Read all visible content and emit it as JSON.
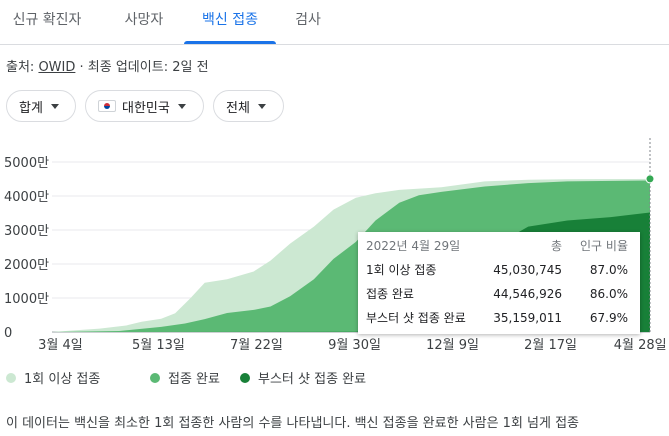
{
  "tabs": [
    {
      "label": "신규 확진자"
    },
    {
      "label": "사망자"
    },
    {
      "label": "백신 접종",
      "active": true
    },
    {
      "label": "검사"
    }
  ],
  "source": {
    "prefix": "출처:",
    "link": "OWID",
    "suffix": "· 최종 업데이트: 2일 전"
  },
  "filters": {
    "aggregate": "합계",
    "country": "대한민국",
    "scope": "전체"
  },
  "chart_data": {
    "type": "area",
    "y_ticks": [
      "0",
      "1000만",
      "2000만",
      "3000만",
      "4000만",
      "5000만"
    ],
    "y_tick_values": [
      0,
      10000000,
      20000000,
      30000000,
      40000000,
      50000000
    ],
    "x_ticks": [
      "3월 4일",
      "5월 13일",
      "7월 22일",
      "9월 30일",
      "12월 9일",
      "2월 17일",
      "4월 28일"
    ],
    "x_tick_dates": [
      "2021-03-04",
      "2021-05-13",
      "2021-07-22",
      "2021-09-30",
      "2021-12-09",
      "2022-02-17",
      "2022-04-28"
    ],
    "ylim": [
      0,
      50000000
    ],
    "xlim": [
      "2021-02-26",
      "2022-04-29"
    ],
    "series": [
      {
        "name": "1회 이상 접종",
        "color": "#cce8d2",
        "x": [
          "2021-02-26",
          "2021-03-15",
          "2021-04-01",
          "2021-04-20",
          "2021-05-01",
          "2021-05-15",
          "2021-05-25",
          "2021-06-05",
          "2021-06-15",
          "2021-07-01",
          "2021-07-20",
          "2021-08-01",
          "2021-08-15",
          "2021-09-01",
          "2021-09-15",
          "2021-10-01",
          "2021-10-15",
          "2021-11-01",
          "2021-12-01",
          "2022-01-01",
          "2022-02-01",
          "2022-03-01",
          "2022-04-29"
        ],
        "values": [
          0,
          500000,
          1000000,
          1900000,
          3000000,
          3900000,
          5500000,
          10000000,
          14500000,
          15500000,
          17800000,
          21000000,
          26000000,
          31000000,
          36000000,
          39500000,
          40800000,
          41800000,
          42600000,
          44300000,
          44800000,
          44900000,
          45030745
        ]
      },
      {
        "name": "접종 완료",
        "color": "#5bb974",
        "x": [
          "2021-02-26",
          "2021-04-15",
          "2021-05-15",
          "2021-06-01",
          "2021-06-15",
          "2021-07-01",
          "2021-07-20",
          "2021-08-01",
          "2021-08-15",
          "2021-09-01",
          "2021-09-15",
          "2021-10-01",
          "2021-10-15",
          "2021-11-01",
          "2021-11-15",
          "2021-12-01",
          "2022-01-01",
          "2022-02-01",
          "2022-03-01",
          "2022-04-29"
        ],
        "values": [
          0,
          300000,
          1500000,
          2500000,
          3800000,
          5600000,
          6500000,
          7500000,
          10500000,
          15500000,
          21500000,
          26500000,
          32800000,
          38000000,
          40200000,
          41200000,
          42800000,
          43800000,
          44300000,
          44546926
        ]
      },
      {
        "name": "부스터 샷 접종 완료",
        "color": "#188038",
        "x": [
          "2021-02-26",
          "2021-10-01",
          "2021-11-01",
          "2021-12-01",
          "2022-01-01",
          "2022-01-15",
          "2022-02-01",
          "2022-03-01",
          "2022-04-01",
          "2022-04-29"
        ],
        "values": [
          0,
          50000,
          1000000,
          7000000,
          22000000,
          27000000,
          31000000,
          32800000,
          33800000,
          35159011
        ]
      }
    ],
    "hover_point": {
      "date": "2022-04-29",
      "value": 45030745
    }
  },
  "tooltip": {
    "date": "2022년 4월 29일",
    "col_total": "총",
    "col_pct": "인구 비율",
    "rows": [
      {
        "name": "1회 이상 접종",
        "total": "45,030,745",
        "pct": "87.0%"
      },
      {
        "name": "접종 완료",
        "total": "44,546,926",
        "pct": "86.0%"
      },
      {
        "name": "부스터 샷 접종 완료",
        "total": "35,159,011",
        "pct": "67.9%"
      }
    ]
  },
  "legend": [
    {
      "label": "1회 이상 접종",
      "color": "#cce8d2"
    },
    {
      "label": "접종 완료",
      "color": "#5bb974"
    },
    {
      "label": "부스터 샷 접종 완료",
      "color": "#188038"
    }
  ],
  "description": "이 데이터는 백신을 최소한 1회 접종한 사람의 수를 나타냅니다. 백신 접종을 완료한 사람은 1회 넘게 접종"
}
